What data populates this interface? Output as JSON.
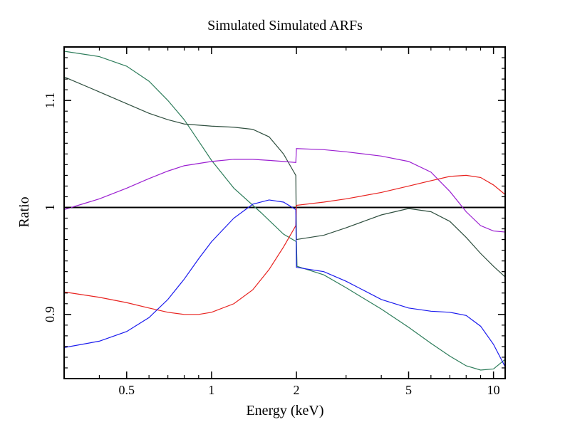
{
  "chart_data": {
    "type": "line",
    "title": "Simulated Simulated ARFs",
    "xlabel": "Energy (keV)",
    "ylabel": "Ratio",
    "xscale": "log",
    "xlim": [
      0.3,
      11
    ],
    "ylim": [
      0.84,
      1.15
    ],
    "grid": false,
    "legend": "none",
    "x_ticks": [
      {
        "value": 0.5,
        "label": "0.5"
      },
      {
        "value": 1,
        "label": "1"
      },
      {
        "value": 2,
        "label": "2"
      },
      {
        "value": 5,
        "label": "5"
      },
      {
        "value": 10,
        "label": "10"
      }
    ],
    "y_ticks": [
      {
        "value": 0.9,
        "label": "0.9"
      },
      {
        "value": 1.0,
        "label": "1"
      },
      {
        "value": 1.1,
        "label": "1.1"
      }
    ],
    "reference_line": {
      "y": 1.0,
      "color": "#000000"
    },
    "series": [
      {
        "color": "#2e7d5b",
        "points": [
          [
            0.3,
            1.146
          ],
          [
            0.4,
            1.141
          ],
          [
            0.5,
            1.132
          ],
          [
            0.6,
            1.118
          ],
          [
            0.7,
            1.1
          ],
          [
            0.8,
            1.082
          ],
          [
            0.9,
            1.062
          ],
          [
            1.0,
            1.044
          ],
          [
            1.2,
            1.018
          ],
          [
            1.5,
            0.995
          ],
          [
            1.8,
            0.975
          ],
          [
            2.0,
            0.968
          ],
          [
            2.01,
            0.945
          ],
          [
            2.5,
            0.937
          ],
          [
            3.0,
            0.925
          ],
          [
            4.0,
            0.905
          ],
          [
            5.0,
            0.888
          ],
          [
            6.0,
            0.873
          ],
          [
            7.0,
            0.861
          ],
          [
            8.0,
            0.852
          ],
          [
            9.0,
            0.848
          ],
          [
            10.0,
            0.849
          ],
          [
            11.0,
            0.858
          ]
        ]
      },
      {
        "color": "#2f4f3f",
        "points": [
          [
            0.3,
            1.122
          ],
          [
            0.4,
            1.108
          ],
          [
            0.5,
            1.097
          ],
          [
            0.6,
            1.088
          ],
          [
            0.7,
            1.082
          ],
          [
            0.8,
            1.078
          ],
          [
            1.0,
            1.076
          ],
          [
            1.2,
            1.075
          ],
          [
            1.4,
            1.073
          ],
          [
            1.6,
            1.066
          ],
          [
            1.8,
            1.05
          ],
          [
            1.95,
            1.034
          ],
          [
            1.99,
            1.03
          ],
          [
            2.0,
            0.97
          ],
          [
            2.5,
            0.974
          ],
          [
            3.0,
            0.981
          ],
          [
            4.0,
            0.993
          ],
          [
            5.0,
            0.999
          ],
          [
            6.0,
            0.996
          ],
          [
            7.0,
            0.987
          ],
          [
            8.0,
            0.972
          ],
          [
            9.0,
            0.957
          ],
          [
            10.0,
            0.945
          ],
          [
            11.0,
            0.935
          ]
        ]
      },
      {
        "color": "#9b1fd1",
        "points": [
          [
            0.3,
            0.998
          ],
          [
            0.4,
            1.008
          ],
          [
            0.5,
            1.018
          ],
          [
            0.6,
            1.027
          ],
          [
            0.7,
            1.034
          ],
          [
            0.8,
            1.039
          ],
          [
            1.0,
            1.043
          ],
          [
            1.2,
            1.045
          ],
          [
            1.4,
            1.045
          ],
          [
            1.6,
            1.044
          ],
          [
            1.8,
            1.043
          ],
          [
            1.99,
            1.042
          ],
          [
            2.0,
            1.055
          ],
          [
            2.5,
            1.054
          ],
          [
            3.0,
            1.052
          ],
          [
            4.0,
            1.048
          ],
          [
            5.0,
            1.043
          ],
          [
            6.0,
            1.033
          ],
          [
            7.0,
            1.015
          ],
          [
            8.0,
            0.996
          ],
          [
            9.0,
            0.983
          ],
          [
            10.0,
            0.978
          ],
          [
            11.0,
            0.977
          ]
        ]
      },
      {
        "color": "#e8221f",
        "points": [
          [
            0.3,
            0.921
          ],
          [
            0.4,
            0.916
          ],
          [
            0.5,
            0.911
          ],
          [
            0.6,
            0.906
          ],
          [
            0.7,
            0.902
          ],
          [
            0.8,
            0.9
          ],
          [
            0.9,
            0.9
          ],
          [
            1.0,
            0.902
          ],
          [
            1.2,
            0.91
          ],
          [
            1.4,
            0.923
          ],
          [
            1.6,
            0.942
          ],
          [
            1.8,
            0.963
          ],
          [
            1.99,
            0.983
          ],
          [
            2.0,
            1.002
          ],
          [
            2.5,
            1.005
          ],
          [
            3.0,
            1.008
          ],
          [
            4.0,
            1.014
          ],
          [
            5.0,
            1.02
          ],
          [
            6.0,
            1.025
          ],
          [
            7.0,
            1.029
          ],
          [
            8.0,
            1.03
          ],
          [
            9.0,
            1.028
          ],
          [
            10.0,
            1.021
          ],
          [
            11.0,
            1.012
          ]
        ]
      },
      {
        "color": "#1a1aee",
        "points": [
          [
            0.3,
            0.869
          ],
          [
            0.4,
            0.875
          ],
          [
            0.5,
            0.884
          ],
          [
            0.6,
            0.897
          ],
          [
            0.7,
            0.914
          ],
          [
            0.8,
            0.933
          ],
          [
            0.9,
            0.952
          ],
          [
            1.0,
            0.968
          ],
          [
            1.2,
            0.99
          ],
          [
            1.4,
            1.003
          ],
          [
            1.6,
            1.007
          ],
          [
            1.8,
            1.005
          ],
          [
            1.99,
            0.998
          ],
          [
            2.0,
            0.944
          ],
          [
            2.5,
            0.94
          ],
          [
            3.0,
            0.931
          ],
          [
            4.0,
            0.914
          ],
          [
            5.0,
            0.906
          ],
          [
            6.0,
            0.903
          ],
          [
            7.0,
            0.902
          ],
          [
            8.0,
            0.899
          ],
          [
            9.0,
            0.889
          ],
          [
            10.0,
            0.872
          ],
          [
            11.0,
            0.851
          ]
        ]
      }
    ]
  }
}
